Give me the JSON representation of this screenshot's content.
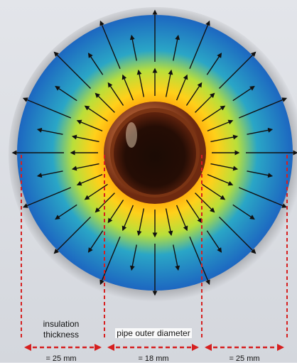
{
  "labels": {
    "insulation_line1": "insulation",
    "insulation_line2": "thickness",
    "pipe": "pipe outer diameter"
  },
  "dimensions": {
    "insulation_left": "= 25 mm",
    "pipe_diameter": "= 18 mm",
    "insulation_right": "= 25 mm"
  },
  "colors": {
    "dimension_line": "#d61f1f",
    "arrow": "#111111",
    "gradient": [
      "#f5f1d8",
      "#ff9a00",
      "#ffd21a",
      "#b7e03a",
      "#2aa9c4",
      "#1a62c2"
    ],
    "pipe": "#b8653b"
  },
  "diagram": {
    "arrow_count": 32
  }
}
